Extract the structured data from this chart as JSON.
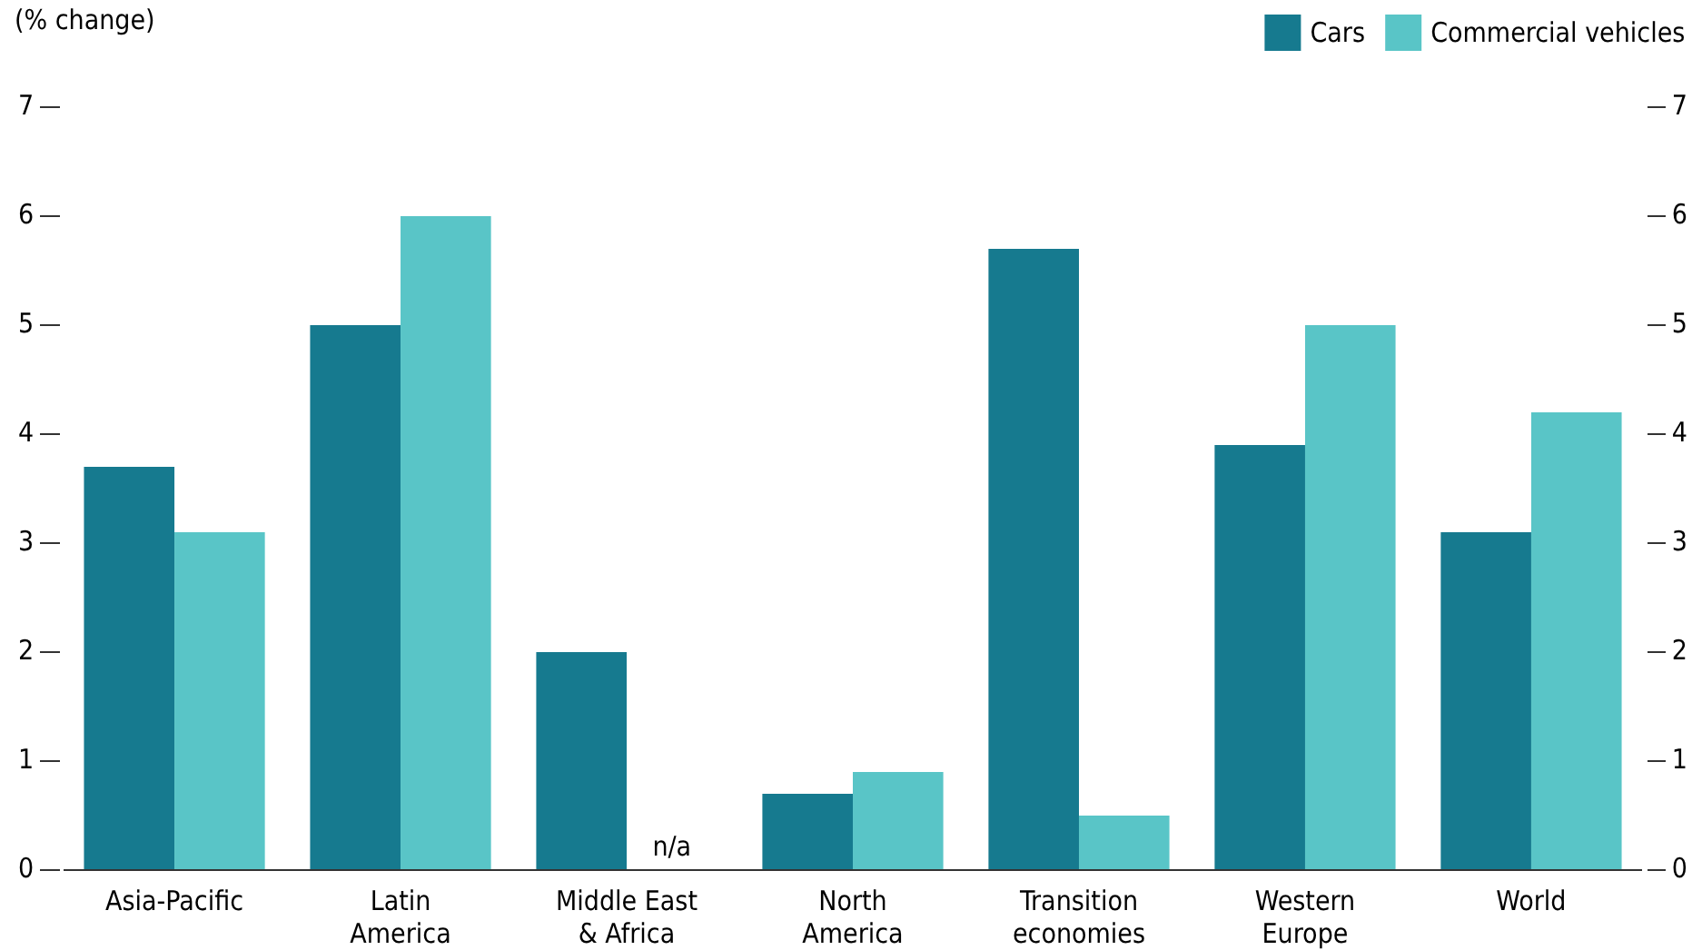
{
  "chart_data": {
    "type": "bar",
    "ylabel": "(% change)",
    "categories": [
      "Asia-Pacific",
      "Latin America",
      "Middle East & Africa",
      "North America",
      "Transition economies",
      "Western Europe",
      "World"
    ],
    "series": [
      {
        "name": "Cars",
        "color": "#167a8f",
        "values": [
          3.7,
          5.0,
          2.0,
          0.7,
          5.7,
          3.9,
          3.1
        ]
      },
      {
        "name": "Commercial vehicles",
        "color": "#59c5c7",
        "values": [
          3.1,
          6.0,
          null,
          0.9,
          0.5,
          5.0,
          4.2
        ]
      }
    ],
    "ylim": [
      0,
      7
    ],
    "yticks": [
      0,
      1,
      2,
      3,
      4,
      5,
      6,
      7
    ],
    "y2lim": [
      0,
      7
    ],
    "y2ticks": [
      0,
      1,
      2,
      3,
      4,
      5,
      6,
      7
    ],
    "annotations": [
      "n/a"
    ],
    "grid": false,
    "legend": "top right"
  }
}
